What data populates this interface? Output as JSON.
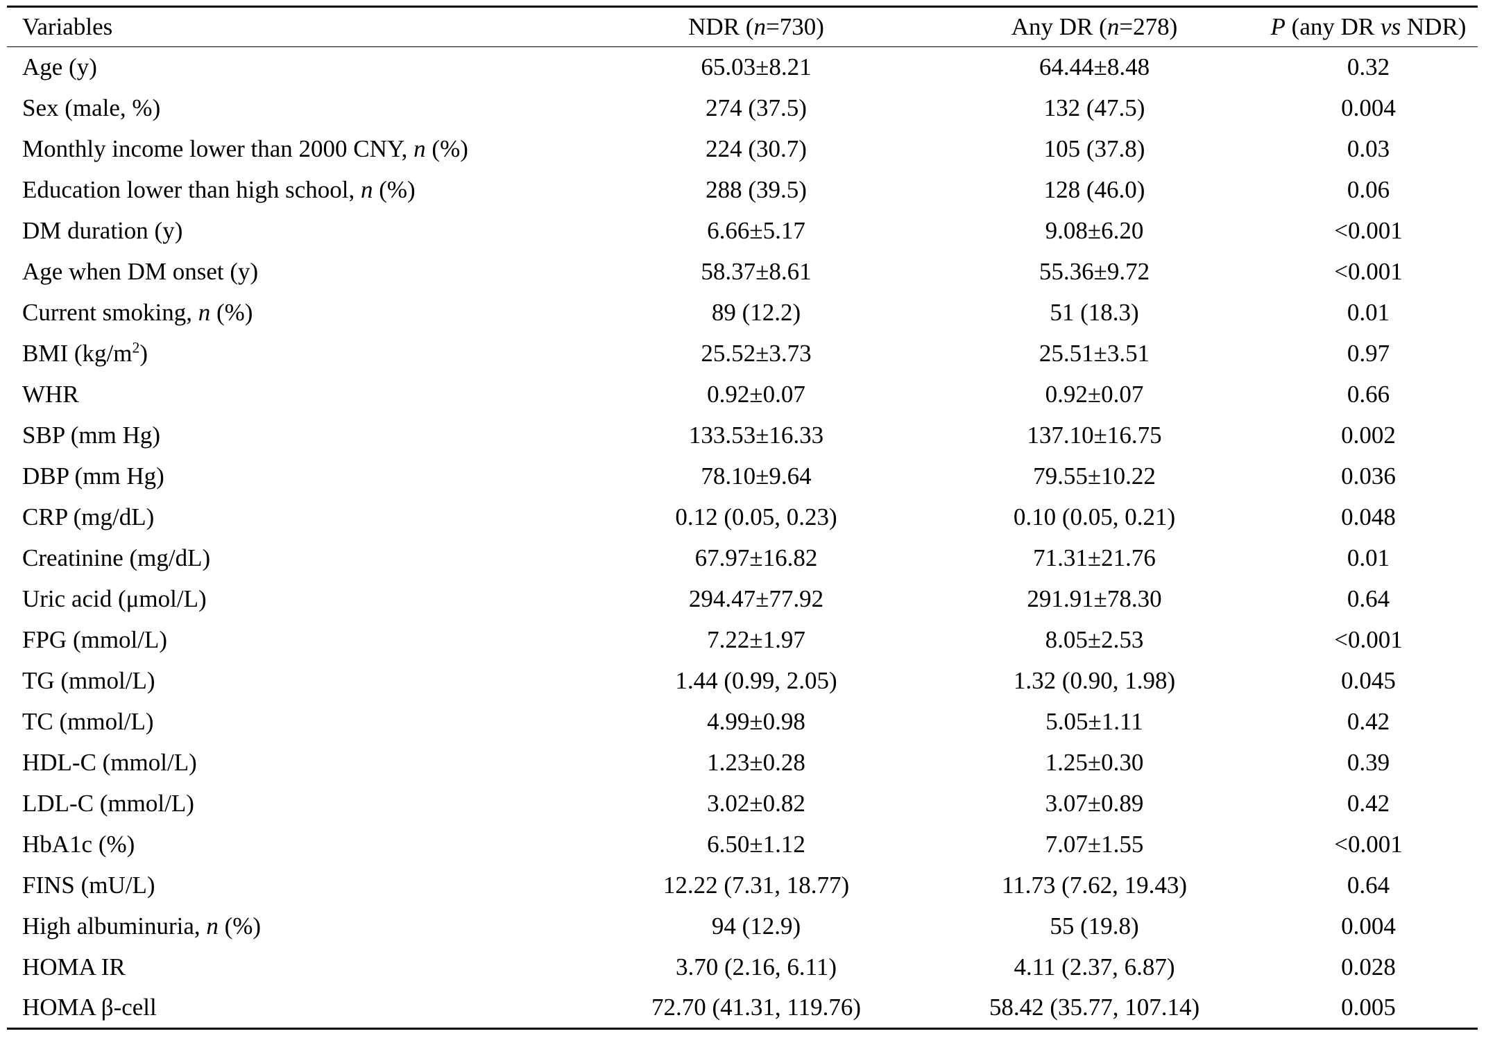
{
  "table": {
    "headers": [
      {
        "parts": [
          {
            "t": "Variables"
          }
        ]
      },
      {
        "parts": [
          {
            "t": "NDR ("
          },
          {
            "t": "n",
            "i": true
          },
          {
            "t": "=730)"
          }
        ]
      },
      {
        "parts": [
          {
            "t": "Any DR ("
          },
          {
            "t": "n",
            "i": true
          },
          {
            "t": "=278)"
          }
        ]
      },
      {
        "parts": [
          {
            "t": "P",
            "i": true
          },
          {
            "t": " (any DR "
          },
          {
            "t": "vs",
            "i": true
          },
          {
            "t": " NDR)"
          }
        ]
      }
    ],
    "rows": [
      {
        "label": [
          {
            "t": "Age (y)"
          }
        ],
        "ndr": "65.03±8.21",
        "any_dr": "64.44±8.48",
        "p": "0.32"
      },
      {
        "label": [
          {
            "t": "Sex (male, %)"
          }
        ],
        "ndr": "274 (37.5)",
        "any_dr": "132 (47.5)",
        "p": "0.004"
      },
      {
        "label": [
          {
            "t": "Monthly income lower than 2000 CNY, "
          },
          {
            "t": "n",
            "i": true
          },
          {
            "t": " (%)"
          }
        ],
        "ndr": "224 (30.7)",
        "any_dr": "105 (37.8)",
        "p": "0.03"
      },
      {
        "label": [
          {
            "t": "Education lower than high school, "
          },
          {
            "t": "n",
            "i": true
          },
          {
            "t": " (%)"
          }
        ],
        "ndr": "288 (39.5)",
        "any_dr": "128 (46.0)",
        "p": "0.06"
      },
      {
        "label": [
          {
            "t": "DM duration (y)"
          }
        ],
        "ndr": "6.66±5.17",
        "any_dr": "9.08±6.20",
        "p": "<0.001"
      },
      {
        "label": [
          {
            "t": "Age when DM onset (y)"
          }
        ],
        "ndr": "58.37±8.61",
        "any_dr": "55.36±9.72",
        "p": "<0.001"
      },
      {
        "label": [
          {
            "t": "Current smoking, "
          },
          {
            "t": "n",
            "i": true
          },
          {
            "t": " (%)"
          }
        ],
        "ndr": "89 (12.2)",
        "any_dr": "51 (18.3)",
        "p": "0.01"
      },
      {
        "label": [
          {
            "t": "BMI (kg/m"
          },
          {
            "t": "2",
            "sup": true
          },
          {
            "t": ")"
          }
        ],
        "ndr": "25.52±3.73",
        "any_dr": "25.51±3.51",
        "p": "0.97"
      },
      {
        "label": [
          {
            "t": "WHR"
          }
        ],
        "ndr": "0.92±0.07",
        "any_dr": "0.92±0.07",
        "p": "0.66"
      },
      {
        "label": [
          {
            "t": "SBP (mm Hg)"
          }
        ],
        "ndr": "133.53±16.33",
        "any_dr": "137.10±16.75",
        "p": "0.002"
      },
      {
        "label": [
          {
            "t": "DBP (mm Hg)"
          }
        ],
        "ndr": "78.10±9.64",
        "any_dr": "79.55±10.22",
        "p": "0.036"
      },
      {
        "label": [
          {
            "t": "CRP (mg/dL)"
          }
        ],
        "ndr": "0.12 (0.05, 0.23)",
        "any_dr": "0.10 (0.05, 0.21)",
        "p": "0.048"
      },
      {
        "label": [
          {
            "t": "Creatinine (mg/dL)"
          }
        ],
        "ndr": "67.97±16.82",
        "any_dr": "71.31±21.76",
        "p": "0.01"
      },
      {
        "label": [
          {
            "t": "Uric acid (μmol/L)"
          }
        ],
        "ndr": "294.47±77.92",
        "any_dr": "291.91±78.30",
        "p": "0.64"
      },
      {
        "label": [
          {
            "t": "FPG (mmol/L)"
          }
        ],
        "ndr": "7.22±1.97",
        "any_dr": "8.05±2.53",
        "p": "<0.001"
      },
      {
        "label": [
          {
            "t": "TG (mmol/L)"
          }
        ],
        "ndr": "1.44 (0.99, 2.05)",
        "any_dr": "1.32 (0.90, 1.98)",
        "p": "0.045"
      },
      {
        "label": [
          {
            "t": "TC (mmol/L)"
          }
        ],
        "ndr": "4.99±0.98",
        "any_dr": "5.05±1.11",
        "p": "0.42"
      },
      {
        "label": [
          {
            "t": "HDL-C (mmol/L)"
          }
        ],
        "ndr": "1.23±0.28",
        "any_dr": "1.25±0.30",
        "p": "0.39"
      },
      {
        "label": [
          {
            "t": "LDL-C (mmol/L)"
          }
        ],
        "ndr": "3.02±0.82",
        "any_dr": "3.07±0.89",
        "p": "0.42"
      },
      {
        "label": [
          {
            "t": "HbA1c (%)"
          }
        ],
        "ndr": "6.50±1.12",
        "any_dr": "7.07±1.55",
        "p": "<0.001"
      },
      {
        "label": [
          {
            "t": "FINS (mU/L)"
          }
        ],
        "ndr": "12.22 (7.31, 18.77)",
        "any_dr": "11.73 (7.62, 19.43)",
        "p": "0.64"
      },
      {
        "label": [
          {
            "t": "High albuminuria, "
          },
          {
            "t": "n",
            "i": true
          },
          {
            "t": " (%)"
          }
        ],
        "ndr": "94 (12.9)",
        "any_dr": "55 (19.8)",
        "p": "0.004"
      },
      {
        "label": [
          {
            "t": "HOMA IR"
          }
        ],
        "ndr": "3.70 (2.16, 6.11)",
        "any_dr": "4.11 (2.37, 6.87)",
        "p": "0.028"
      },
      {
        "label": [
          {
            "t": "HOMA β-cell"
          }
        ],
        "ndr": "72.70 (41.31, 119.76)",
        "any_dr": "58.42 (35.77, 107.14)",
        "p": "0.005"
      }
    ]
  }
}
